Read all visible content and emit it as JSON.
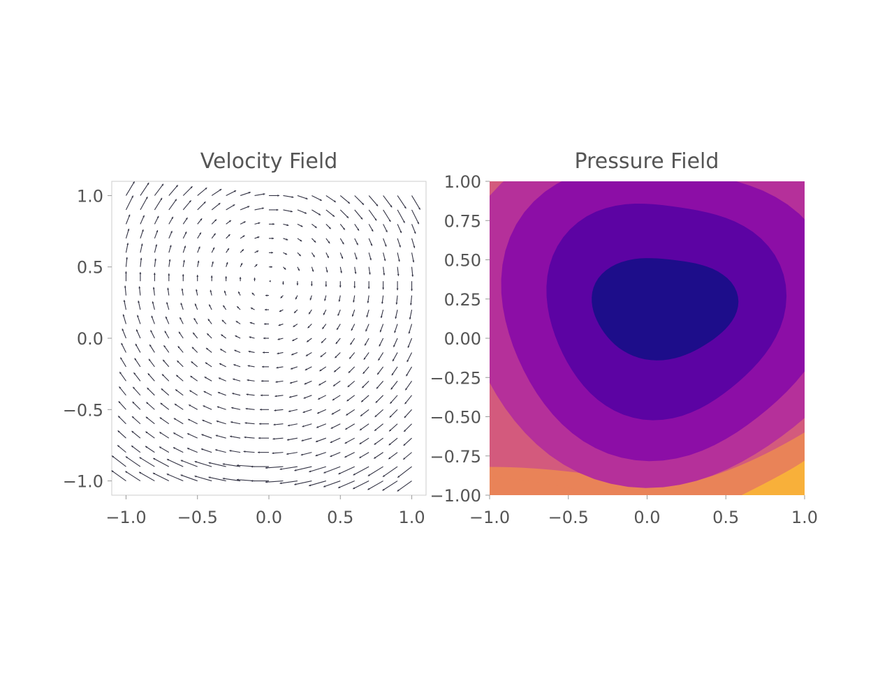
{
  "chart_data": [
    {
      "type": "quiver",
      "title": "Velocity Field",
      "xlabel": "",
      "ylabel": "",
      "xlim": [
        -1.1,
        1.1
      ],
      "ylim": [
        -1.1,
        1.1
      ],
      "x_ticks": [
        "−1.0",
        "−0.5",
        "0.0",
        "0.5",
        "1.0"
      ],
      "y_ticks": [
        "−1.0",
        "−0.5",
        "0.0",
        "0.5",
        "1.0"
      ],
      "grid_n": 21,
      "grid_range": [
        -1.0,
        1.0
      ],
      "field": "lid-driven cavity recirculation: clockwise vortex centered near (0.0, 0.4), strongest flow along top (+x) and bottom (−x) walls",
      "arrow_color": "#333344"
    },
    {
      "type": "contourf",
      "title": "Pressure Field",
      "xlabel": "",
      "ylabel": "",
      "xlim": [
        -1.0,
        1.0
      ],
      "ylim": [
        -1.0,
        1.0
      ],
      "x_ticks": [
        "−1.0",
        "−0.5",
        "0.0",
        "0.5",
        "1.0"
      ],
      "y_ticks": [
        "−1.00",
        "−0.75",
        "−0.50",
        "−0.25",
        "0.00",
        "0.25",
        "0.50",
        "0.75",
        "1.00"
      ],
      "minimum_location": [
        0.1,
        0.25
      ],
      "colormap": "plasma",
      "levels": [
        "#1d0d8a",
        "#5c03a3",
        "#8c0ea6",
        "#b5309a",
        "#d35a7d",
        "#e98358",
        "#f8b03a"
      ]
    }
  ]
}
